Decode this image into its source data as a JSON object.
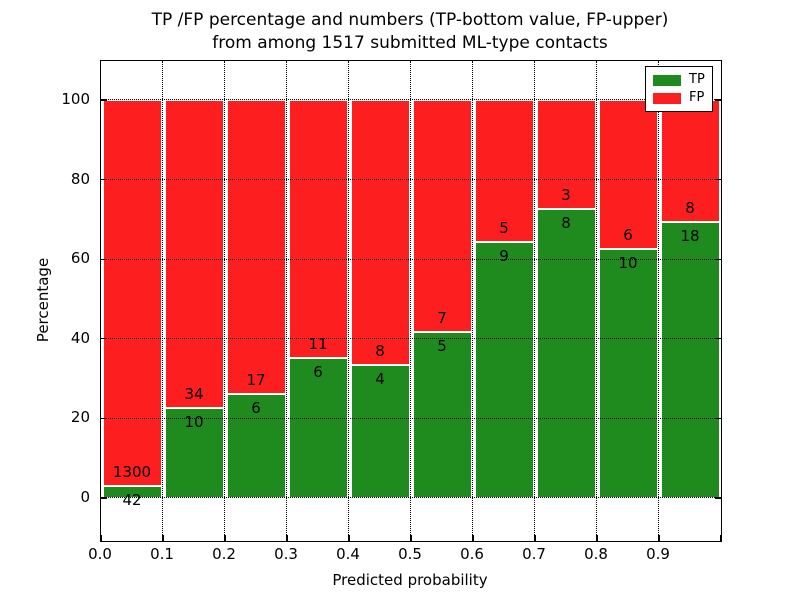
{
  "title": {
    "line1": "TP /FP percentage and numbers (TP-bottom value, FP-upper)",
    "line2": "from among 1517 submitted ML-type contacts"
  },
  "colors": {
    "tp_green": "#1f8b1f",
    "fp_red": "#fd1f1f",
    "grid": "#000000",
    "background": "#ffffff"
  },
  "chart_data": {
    "type": "bar",
    "stacked": true,
    "normalized_to_percent": true,
    "title": "TP /FP percentage and numbers (TP-bottom value, FP-upper) from among 1517 submitted ML-type contacts",
    "xlabel": "Predicted probability",
    "ylabel": "Percentage",
    "x_tick_labels": [
      "0.0",
      "0.1",
      "0.2",
      "0.3",
      "0.4",
      "0.5",
      "0.6",
      "0.7",
      "0.8",
      "0.9"
    ],
    "y_tick_labels": [
      "0",
      "20",
      "40",
      "60",
      "80",
      "100"
    ],
    "y_ticks": [
      0,
      20,
      40,
      60,
      80,
      100
    ],
    "xlim": [
      0.0,
      1.0
    ],
    "ylim": [
      -10.8,
      109.8
    ],
    "bin_width": 0.1,
    "grid": "dotted",
    "legend_position": "upper right",
    "total_contacts": 1517,
    "series": [
      {
        "name": "TP",
        "color": "#1f8b1f"
      },
      {
        "name": "FP",
        "color": "#fd1f1f"
      }
    ],
    "bars": [
      {
        "bin_start": 0.0,
        "bin_end": 0.1,
        "tp": 42,
        "fp": 1300,
        "tp_pct": 3.13
      },
      {
        "bin_start": 0.1,
        "bin_end": 0.2,
        "tp": 10,
        "fp": 34,
        "tp_pct": 22.73
      },
      {
        "bin_start": 0.2,
        "bin_end": 0.3,
        "tp": 6,
        "fp": 17,
        "tp_pct": 26.09
      },
      {
        "bin_start": 0.3,
        "bin_end": 0.4,
        "tp": 6,
        "fp": 11,
        "tp_pct": 35.29
      },
      {
        "bin_start": 0.4,
        "bin_end": 0.5,
        "tp": 4,
        "fp": 8,
        "tp_pct": 33.33
      },
      {
        "bin_start": 0.5,
        "bin_end": 0.6,
        "tp": 5,
        "fp": 7,
        "tp_pct": 41.67
      },
      {
        "bin_start": 0.6,
        "bin_end": 0.7,
        "tp": 9,
        "fp": 5,
        "tp_pct": 64.29
      },
      {
        "bin_start": 0.7,
        "bin_end": 0.8,
        "tp": 8,
        "fp": 3,
        "tp_pct": 72.73
      },
      {
        "bin_start": 0.8,
        "bin_end": 0.9,
        "tp": 10,
        "fp": 6,
        "tp_pct": 62.5
      },
      {
        "bin_start": 0.9,
        "bin_end": 1.0,
        "tp": 18,
        "fp": 8,
        "tp_pct": 69.23
      }
    ]
  }
}
